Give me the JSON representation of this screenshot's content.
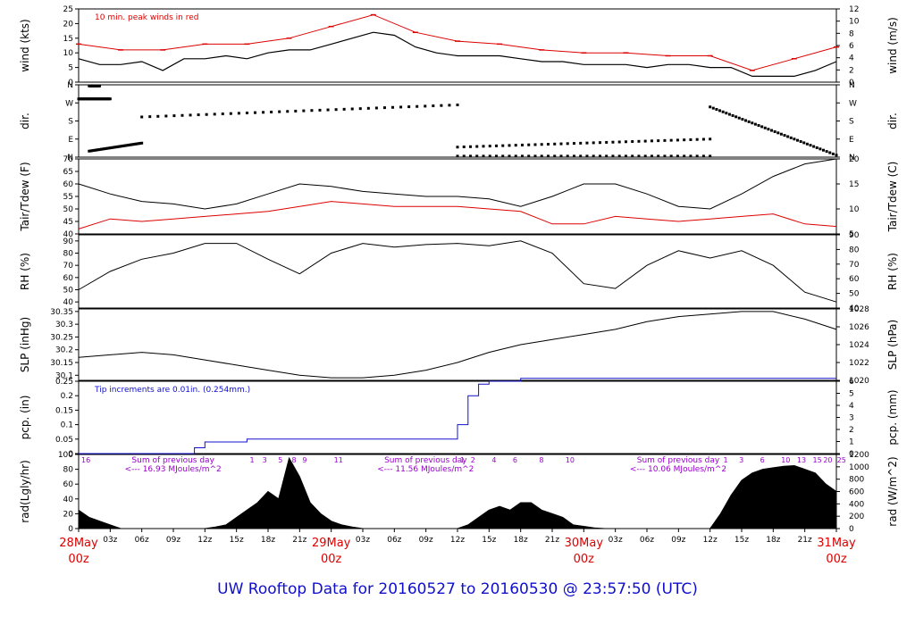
{
  "page_title": "UW Rooftop Data for 20160527  to  20160530 @ 23:57:50  (UTC)",
  "chart_data": [
    {
      "type": "line",
      "id": "wind",
      "ylabel_left": "wind (kts)",
      "ylabel_right": "wind (m/s)",
      "ylim": [
        0,
        25
      ],
      "yticks_left": [
        0,
        5,
        10,
        15,
        20,
        25
      ],
      "yticks_right": [
        0,
        2,
        4,
        6,
        8,
        10,
        12
      ],
      "annotation": "10 min. peak winds in red",
      "series": [
        {
          "color": "#000000",
          "x": [
            0,
            2,
            4,
            6,
            8,
            10,
            12,
            14,
            16,
            18,
            20,
            22,
            24,
            26,
            28,
            30,
            32,
            34,
            36,
            38,
            40,
            42,
            44,
            46,
            48,
            50,
            52,
            54,
            56,
            58,
            60,
            62,
            64,
            66,
            68,
            70,
            72
          ],
          "values": [
            8,
            6,
            6,
            7,
            4,
            8,
            8,
            9,
            8,
            10,
            11,
            11,
            13,
            15,
            17,
            16,
            12,
            10,
            9,
            9,
            9,
            8,
            7,
            7,
            6,
            6,
            6,
            5,
            6,
            6,
            5,
            5,
            2,
            2,
            2,
            4,
            7
          ]
        },
        {
          "color": "#dd0000",
          "x": [
            0,
            4,
            8,
            12,
            16,
            20,
            24,
            28,
            32,
            36,
            40,
            44,
            48,
            52,
            56,
            60,
            64,
            68,
            72
          ],
          "values": [
            13,
            11,
            11,
            13,
            13,
            15,
            19,
            23,
            17,
            14,
            13,
            11,
            10,
            10,
            9,
            9,
            4,
            8,
            12
          ]
        }
      ]
    },
    {
      "type": "scatter",
      "id": "direction",
      "ylabel_left": "dir.",
      "ylabel_right": "dir.",
      "yticks_left": [
        "N",
        "E",
        "S",
        "W",
        "N"
      ],
      "yticks_right": [
        "N",
        "E",
        "S",
        "W",
        "N"
      ],
      "segments": [
        {
          "x": [
            0,
            3
          ],
          "dir": [
            290,
            290
          ]
        },
        {
          "x": [
            1,
            2
          ],
          "dir": [
            355,
            355
          ]
        },
        {
          "x": [
            1,
            6
          ],
          "dir": [
            30,
            70
          ]
        },
        {
          "x": [
            6,
            36
          ],
          "dir": [
            200,
            260
          ]
        },
        {
          "x": [
            36,
            60
          ],
          "dir": [
            5,
            5
          ]
        },
        {
          "x": [
            36,
            60
          ],
          "dir": [
            50,
            90
          ]
        },
        {
          "x": [
            60,
            72
          ],
          "dir": [
            250,
            10
          ]
        }
      ]
    },
    {
      "type": "line",
      "id": "temperature",
      "ylabel_left": "Tair/Tdew (F)",
      "ylabel_right": "Tair/Tdew (C)",
      "ylim": [
        40,
        70
      ],
      "yticks_left": [
        40,
        45,
        50,
        55,
        60,
        65,
        70
      ],
      "yticks_right": [
        5,
        10,
        15,
        20
      ],
      "series": [
        {
          "color": "#000000",
          "x": [
            0,
            3,
            6,
            9,
            12,
            15,
            18,
            21,
            24,
            27,
            30,
            33,
            36,
            39,
            42,
            45,
            48,
            51,
            54,
            57,
            60,
            63,
            66,
            69,
            72
          ],
          "values": [
            60,
            56,
            53,
            52,
            50,
            52,
            56,
            60,
            59,
            57,
            56,
            55,
            55,
            54,
            51,
            55,
            60,
            60,
            56,
            51,
            50,
            56,
            63,
            68,
            70
          ]
        },
        {
          "color": "#dd0000",
          "x": [
            0,
            3,
            6,
            9,
            12,
            15,
            18,
            21,
            24,
            27,
            30,
            33,
            36,
            39,
            42,
            45,
            48,
            51,
            54,
            57,
            60,
            63,
            66,
            69,
            72
          ],
          "values": [
            42,
            46,
            45,
            46,
            47,
            48,
            49,
            51,
            53,
            52,
            51,
            51,
            51,
            50,
            49,
            44,
            44,
            47,
            46,
            45,
            46,
            47,
            48,
            44,
            43
          ]
        }
      ]
    },
    {
      "type": "line",
      "id": "humidity",
      "ylabel_left": "RH (%)",
      "ylabel_right": "RH (%)",
      "ylim": [
        35,
        95
      ],
      "yticks_left": [
        40,
        50,
        60,
        70,
        80,
        90
      ],
      "yticks_right": [
        40,
        50,
        60,
        70,
        80,
        90
      ],
      "series": [
        {
          "color": "#000000",
          "x": [
            0,
            3,
            6,
            9,
            12,
            15,
            18,
            21,
            24,
            27,
            30,
            33,
            36,
            39,
            42,
            45,
            48,
            51,
            54,
            57,
            60,
            63,
            66,
            69,
            72
          ],
          "values": [
            50,
            65,
            75,
            80,
            88,
            88,
            75,
            63,
            80,
            88,
            85,
            87,
            88,
            86,
            90,
            80,
            55,
            51,
            70,
            82,
            76,
            82,
            70,
            48,
            40
          ]
        }
      ]
    },
    {
      "type": "line",
      "id": "pressure",
      "ylabel_left": "SLP (inHg)",
      "ylabel_right": "SLP (hPa)",
      "ylim": [
        30.08,
        30.36
      ],
      "yticks_left": [
        30.1,
        30.15,
        30.2,
        30.25,
        30.3,
        30.35
      ],
      "yticks_right": [
        1020,
        1022,
        1024,
        1026,
        1028
      ],
      "series": [
        {
          "color": "#000000",
          "x": [
            0,
            3,
            6,
            9,
            12,
            15,
            18,
            21,
            24,
            27,
            30,
            33,
            36,
            39,
            42,
            45,
            48,
            51,
            54,
            57,
            60,
            63,
            66,
            69,
            72
          ],
          "values": [
            30.17,
            30.18,
            30.19,
            30.18,
            30.16,
            30.14,
            30.12,
            30.1,
            30.09,
            30.09,
            30.1,
            30.12,
            30.15,
            30.19,
            30.22,
            30.24,
            30.26,
            30.28,
            30.31,
            30.33,
            30.34,
            30.35,
            30.35,
            30.32,
            30.28
          ]
        }
      ]
    },
    {
      "type": "line",
      "id": "precipitation",
      "ylabel_left": "pcp. (in)",
      "ylabel_right": "pcp. (mm)",
      "ylim": [
        0,
        0.25
      ],
      "yticks_left": [
        0,
        0.05,
        0.1,
        0.15,
        0.2,
        0.25
      ],
      "yticks_right": [
        0,
        1,
        2,
        3,
        4,
        5,
        6
      ],
      "annotation": "Tip increments are 0.01in. (0.254mm.)",
      "series": [
        {
          "color": "#1010cc",
          "x": [
            0,
            10,
            11,
            12,
            16,
            35,
            36,
            37,
            38,
            39,
            42,
            72
          ],
          "values": [
            0,
            0,
            0.02,
            0.04,
            0.05,
            0.05,
            0.1,
            0.2,
            0.24,
            0.25,
            0.26,
            0.26
          ]
        }
      ]
    },
    {
      "type": "area",
      "id": "radiation",
      "ylabel_left": "rad(Lgly/hr)",
      "ylabel_right": "rad (W/m^2)",
      "ylim": [
        0,
        100
      ],
      "yticks_left": [
        0,
        20,
        40,
        60,
        80,
        100
      ],
      "yticks_right": [
        0,
        200,
        400,
        600,
        800,
        1000,
        1200
      ],
      "x_tick_labels": [
        "03z",
        "06z",
        "09z",
        "12z",
        "15z",
        "18z",
        "21z",
        "03z",
        "06z",
        "09z",
        "12z",
        "15z",
        "18z",
        "21z",
        "03z",
        "06z",
        "09z",
        "12z",
        "15z",
        "18z",
        "21z"
      ],
      "day_labels": [
        {
          "x": 0,
          "date": "28May",
          "hour": "00z"
        },
        {
          "x": 24,
          "date": "29May",
          "hour": "00z"
        },
        {
          "x": 48,
          "date": "30May",
          "hour": "00z"
        },
        {
          "x": 72,
          "date": "31May",
          "hour": "00z"
        }
      ],
      "day_summaries": [
        {
          "x": 6,
          "title": "Sum of previous day",
          "text": "<--- 16.93 MJoules/m^2"
        },
        {
          "x": 30,
          "title": "Sum of previous day",
          "text": "<--- 11.56 MJoules/m^2"
        },
        {
          "x": 54,
          "title": "Sum of previous day",
          "text": "<--- 10.06 MJoules/m^2"
        }
      ],
      "hour_marks": [
        "16",
        "1",
        "3",
        "5",
        "8",
        "9",
        "11",
        "1",
        "2",
        "4",
        "6",
        "8",
        "10",
        "1",
        "3",
        "6",
        "10",
        "13",
        "15",
        "20",
        "25"
      ],
      "series": [
        {
          "color": "#000000",
          "x": [
            0,
            1,
            2,
            3,
            4,
            12,
            13,
            14,
            15,
            16,
            17,
            18,
            19,
            20,
            21,
            22,
            23,
            24,
            25,
            26,
            27,
            36,
            37,
            38,
            39,
            40,
            41,
            42,
            43,
            44,
            45,
            46,
            47,
            48,
            49,
            50,
            60,
            61,
            62,
            63,
            64,
            65,
            66,
            67,
            68,
            69,
            70,
            71,
            72
          ],
          "values": [
            25,
            15,
            10,
            5,
            0,
            0,
            2,
            5,
            15,
            25,
            35,
            50,
            40,
            95,
            70,
            35,
            20,
            10,
            5,
            2,
            0,
            0,
            5,
            15,
            25,
            30,
            25,
            35,
            35,
            25,
            20,
            15,
            5,
            3,
            1,
            0,
            0,
            20,
            45,
            65,
            75,
            80,
            82,
            84,
            85,
            80,
            75,
            60,
            50
          ]
        }
      ]
    }
  ]
}
